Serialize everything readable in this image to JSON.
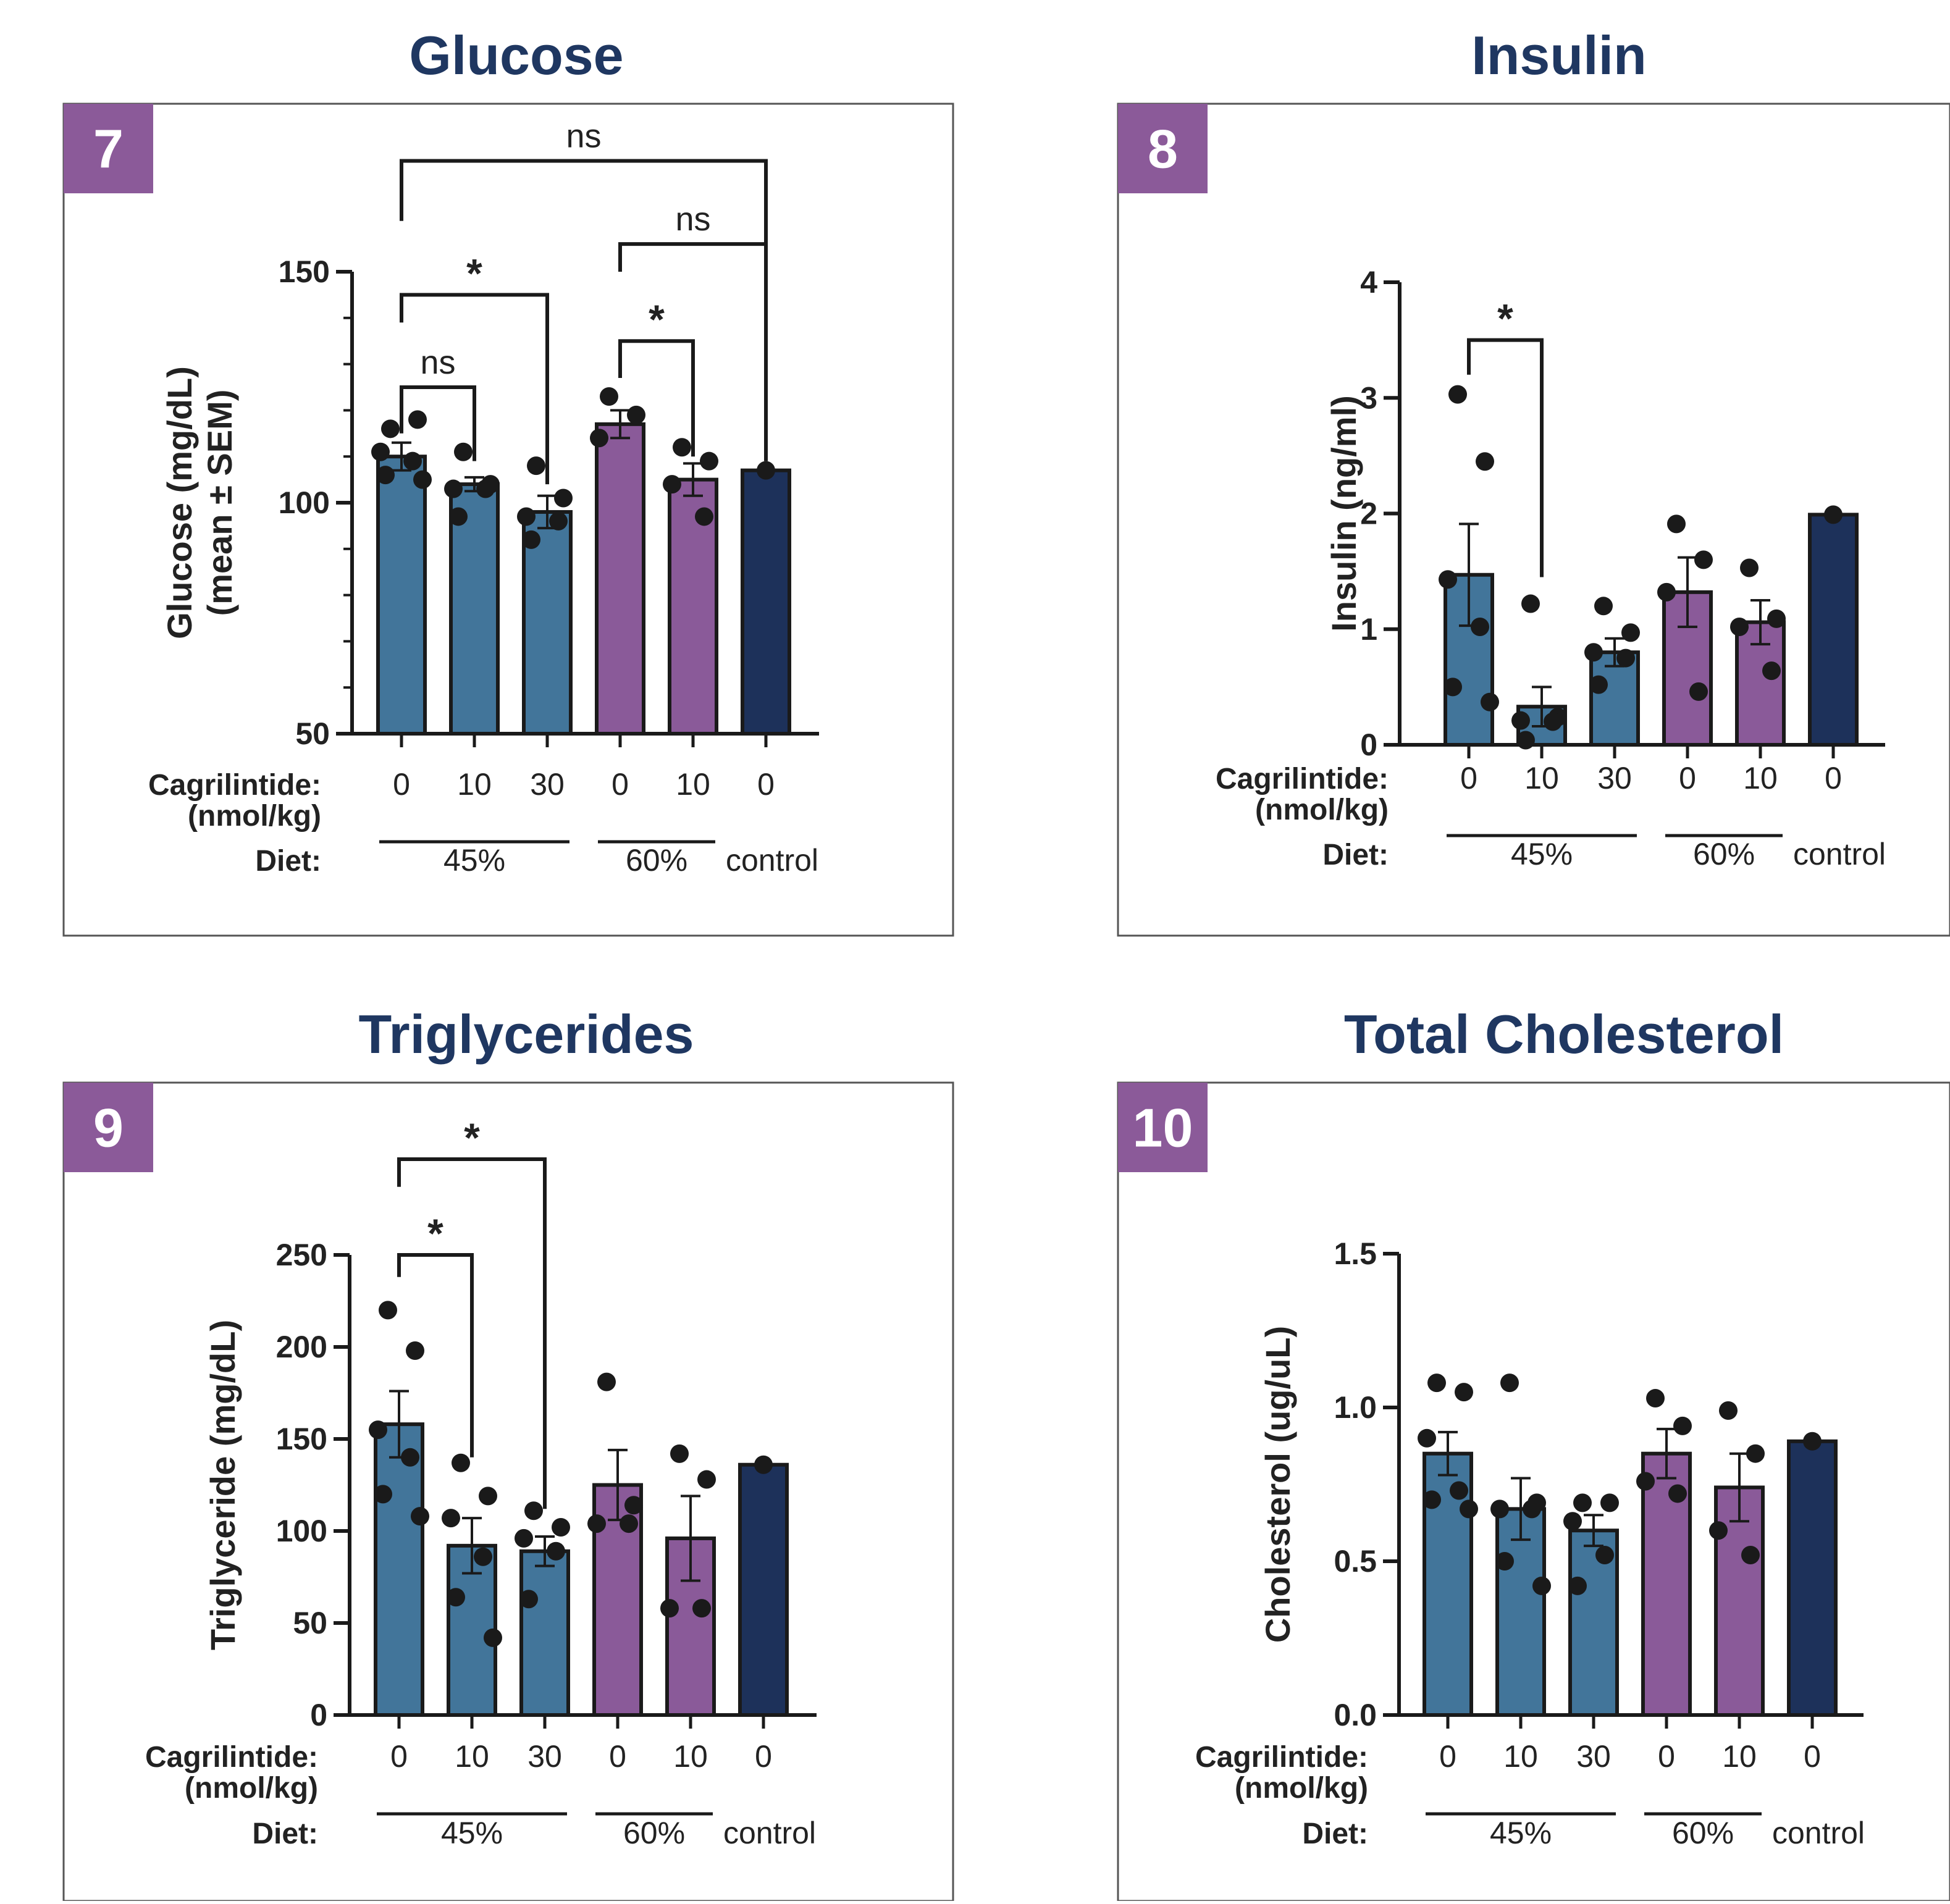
{
  "colors": {
    "blue": "#42759a",
    "purple": "#8a5a99",
    "navy": "#1d315a",
    "badge": "#8b5a99",
    "title": "#1f3761",
    "ink": "#1a1a1a"
  },
  "row_labels": {
    "cagrilintide": "Cagrilintide:",
    "unit": "(nmol/kg)",
    "diet": "Diet:"
  },
  "chart_data": [
    {
      "type": "bar",
      "panel_number": "7",
      "title": "Glucose",
      "ylabel": [
        "Glucose (mg/dL)",
        "(mean ± SEM)"
      ],
      "ylim": [
        50,
        150
      ],
      "yticks": [
        "50",
        "100",
        "150"
      ],
      "yminor": 10,
      "categories": [
        "0",
        "10",
        "30",
        "0",
        "10",
        "0"
      ],
      "diet_groups": [
        {
          "label": "45%",
          "bars": [
            0,
            2
          ]
        },
        {
          "label": "60%",
          "bars": [
            3,
            4
          ]
        },
        {
          "label": "control",
          "bars": [
            5,
            5
          ],
          "no_line": true
        }
      ],
      "bar_colors": [
        "blue",
        "blue",
        "blue",
        "purple",
        "purple",
        "navy"
      ],
      "values": [
        110,
        104,
        98,
        117,
        105,
        107
      ],
      "sem": [
        3,
        1.5,
        3.5,
        3,
        3.5,
        0
      ],
      "points": [
        [
          116,
          118,
          111,
          109,
          106,
          105
        ],
        [
          111,
          104,
          103,
          103,
          97
        ],
        [
          108,
          101,
          97,
          96,
          92
        ],
        [
          123,
          119,
          114
        ],
        [
          112,
          109,
          104,
          97
        ],
        [
          107
        ]
      ],
      "comparisons": [
        {
          "from": 0,
          "to": 1,
          "label": "ns",
          "y": 125,
          "drop_from": 115,
          "drop_to": 109
        },
        {
          "from": 0,
          "to": 2,
          "label": "*",
          "y": 145,
          "drop_from": 139,
          "drop_to": 104
        },
        {
          "from": 3,
          "to": 4,
          "label": "*",
          "y": 135,
          "drop_from": 127,
          "drop_to": 110
        },
        {
          "from": 3,
          "to": 5,
          "label": "ns",
          "y": 156,
          "drop_from": 150,
          "drop_to": 109
        },
        {
          "from": 0,
          "to": 5,
          "label": "ns",
          "y": 174,
          "drop_from": 161,
          "drop_to": 109
        }
      ]
    },
    {
      "type": "bar",
      "panel_number": "8",
      "title": "Insulin",
      "ylabel": [
        "Insulin (ng/ml)"
      ],
      "ylim": [
        0,
        4
      ],
      "yticks": [
        "0",
        "1",
        "2",
        "3",
        "4"
      ],
      "yminor": 0,
      "categories": [
        "0",
        "10",
        "30",
        "0",
        "10",
        "0"
      ],
      "diet_groups": [
        {
          "label": "45%",
          "bars": [
            0,
            2
          ]
        },
        {
          "label": "60%",
          "bars": [
            3,
            4
          ]
        },
        {
          "label": "control",
          "bars": [
            5,
            5
          ],
          "no_line": true
        }
      ],
      "bar_colors": [
        "blue",
        "blue",
        "blue",
        "purple",
        "purple",
        "navy"
      ],
      "values": [
        1.47,
        0.33,
        0.8,
        1.32,
        1.06,
        1.99
      ],
      "sem": [
        0.44,
        0.17,
        0.12,
        0.3,
        0.19,
        0
      ],
      "points": [
        [
          3.03,
          2.45,
          1.43,
          1.02,
          0.5,
          0.37
        ],
        [
          1.22,
          0.24,
          0.21,
          0.2,
          0.04
        ],
        [
          1.2,
          0.97,
          0.8,
          0.75,
          0.52
        ],
        [
          1.91,
          1.6,
          1.32,
          0.46
        ],
        [
          1.53,
          1.09,
          1.02,
          0.64
        ],
        [
          1.99
        ]
      ],
      "comparisons": [
        {
          "from": 0,
          "to": 1,
          "label": "*",
          "y": 3.5,
          "drop_from": 3.2,
          "drop_to": 1.45
        }
      ]
    },
    {
      "type": "bar",
      "panel_number": "9",
      "title": "Triglycerides",
      "ylabel": [
        "Triglyceride (mg/dL)"
      ],
      "ylim": [
        0,
        250
      ],
      "yticks": [
        "0",
        "50",
        "100",
        "150",
        "200",
        "250"
      ],
      "yminor": 0,
      "categories": [
        "0",
        "10",
        "30",
        "0",
        "10",
        "0"
      ],
      "diet_groups": [
        {
          "label": "45%",
          "bars": [
            0,
            2
          ]
        },
        {
          "label": "60%",
          "bars": [
            3,
            4
          ]
        },
        {
          "label": "control",
          "bars": [
            5,
            5
          ],
          "no_line": true
        }
      ],
      "bar_colors": [
        "blue",
        "blue",
        "blue",
        "purple",
        "purple",
        "navy"
      ],
      "values": [
        158,
        92,
        89,
        125,
        96,
        136
      ],
      "sem": [
        18,
        15,
        8,
        19,
        23,
        0
      ],
      "points": [
        [
          220,
          198,
          155,
          140,
          120,
          108
        ],
        [
          137,
          119,
          107,
          86,
          64,
          42
        ],
        [
          111,
          102,
          96,
          89,
          63
        ],
        [
          181,
          114,
          104,
          104
        ],
        [
          142,
          128,
          58,
          58
        ],
        [
          136
        ]
      ],
      "comparisons": [
        {
          "from": 0,
          "to": 1,
          "label": "*",
          "y": 250,
          "drop_from": 238,
          "drop_to": 140
        },
        {
          "from": 0,
          "to": 2,
          "label": "*",
          "y": 302,
          "drop_from": 287,
          "drop_to": 112
        }
      ]
    },
    {
      "type": "bar",
      "panel_number": "10",
      "title": "Total Cholesterol",
      "ylabel": [
        "Cholesterol (ug/uL)"
      ],
      "ylim": [
        0,
        1.5
      ],
      "yticks": [
        "0.0",
        "0.5",
        "1.0",
        "1.5"
      ],
      "yminor": 0,
      "categories": [
        "0",
        "10",
        "30",
        "0",
        "10",
        "0"
      ],
      "diet_groups": [
        {
          "label": "45%",
          "bars": [
            0,
            2
          ]
        },
        {
          "label": "60%",
          "bars": [
            3,
            4
          ]
        },
        {
          "label": "control",
          "bars": [
            5,
            5
          ],
          "no_line": true
        }
      ],
      "bar_colors": [
        "blue",
        "blue",
        "blue",
        "purple",
        "purple",
        "navy"
      ],
      "values": [
        0.85,
        0.67,
        0.6,
        0.85,
        0.74,
        0.89
      ],
      "sem": [
        0.07,
        0.1,
        0.05,
        0.08,
        0.11,
        0
      ],
      "points": [
        [
          1.08,
          1.05,
          0.9,
          0.73,
          0.7,
          0.67
        ],
        [
          1.08,
          0.69,
          0.67,
          0.67,
          0.5,
          0.42
        ],
        [
          0.69,
          0.69,
          0.63,
          0.52,
          0.42
        ],
        [
          1.03,
          0.94,
          0.76,
          0.72
        ],
        [
          0.99,
          0.85,
          0.6,
          0.52
        ],
        [
          0.89
        ]
      ],
      "comparisons": []
    }
  ]
}
